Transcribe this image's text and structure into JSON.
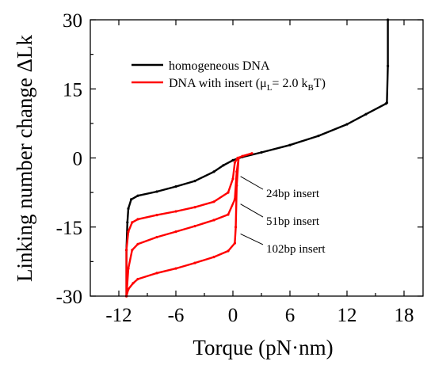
{
  "chart_data": {
    "type": "line",
    "xlabel": "Torque (pN·nm)",
    "ylabel": "Linking number change  ΔLk",
    "xlim": [
      -15,
      20
    ],
    "ylim": [
      -30,
      30
    ],
    "xticks": [
      "-12",
      "-6",
      "0",
      "6",
      "12",
      "18"
    ],
    "yticks": [
      "30",
      "15",
      "0",
      "-15",
      "-30"
    ],
    "legend_position": "top",
    "series": [
      {
        "name": "homogeneous DNA",
        "color": "#000000",
        "points": [
          [
            -11.2,
            -30
          ],
          [
            -11.2,
            -20
          ],
          [
            -11.1,
            -14
          ],
          [
            -11.0,
            -11
          ],
          [
            -10.7,
            -9.0
          ],
          [
            -10.0,
            -8.2
          ],
          [
            -8,
            -7.3
          ],
          [
            -6,
            -6.2
          ],
          [
            -4,
            -5.0
          ],
          [
            -2,
            -3.0
          ],
          [
            -1,
            -1.6
          ],
          [
            0,
            -0.5
          ],
          [
            1,
            0.2
          ],
          [
            3,
            1.2
          ],
          [
            6,
            2.8
          ],
          [
            9,
            4.8
          ],
          [
            12,
            7.3
          ],
          [
            14,
            9.5
          ],
          [
            16.1,
            11.8
          ],
          [
            16.2,
            12
          ],
          [
            16.3,
            20
          ],
          [
            16.3,
            30
          ]
        ]
      },
      {
        "name": "DNA with insert (μL= 2.0 kBT)",
        "color": "#ff0000",
        "points": [
          [
            -11.2,
            -30
          ],
          [
            -11.2,
            -20
          ],
          [
            -11.0,
            -16.0
          ],
          [
            -10.6,
            -14.0
          ],
          [
            -10,
            -13.3
          ],
          [
            -8,
            -12.4
          ],
          [
            -6,
            -11.6
          ],
          [
            -4,
            -10.7
          ],
          [
            -2,
            -9.5
          ],
          [
            -0.5,
            -7.5
          ],
          [
            0,
            -4.5
          ],
          [
            0.2,
            -1.0
          ],
          [
            0.5,
            0
          ],
          [
            1,
            0.4
          ],
          [
            2,
            1.0
          ]
        ]
      },
      {
        "name": "",
        "color": "#ff0000",
        "points": [
          [
            -11.2,
            -30
          ],
          [
            -11.0,
            -24.0
          ],
          [
            -10.6,
            -20.0
          ],
          [
            -10,
            -18.7
          ],
          [
            -8,
            -17.2
          ],
          [
            -6,
            -16.0
          ],
          [
            -4,
            -14.8
          ],
          [
            -2,
            -13.5
          ],
          [
            -0.5,
            -12.3
          ],
          [
            0.2,
            -9.0
          ],
          [
            0.4,
            -3.0
          ],
          [
            0.6,
            0
          ]
        ]
      },
      {
        "name": "",
        "color": "#ff0000",
        "points": [
          [
            -11.2,
            -30
          ],
          [
            -11.0,
            -28.5
          ],
          [
            -10.5,
            -27.2
          ],
          [
            -10,
            -26.3
          ],
          [
            -8,
            -25.0
          ],
          [
            -6,
            -24.0
          ],
          [
            -4,
            -22.8
          ],
          [
            -2,
            -21.5
          ],
          [
            -0.5,
            -20.2
          ],
          [
            0.2,
            -18.5
          ],
          [
            0.3,
            -15
          ],
          [
            0.4,
            -6
          ],
          [
            0.6,
            0
          ]
        ]
      }
    ],
    "annotations": [
      {
        "text": "24bp insert",
        "label_x": 3.5,
        "label_y": -7.5,
        "arrow_to": [
          0.8,
          -4
        ]
      },
      {
        "text": "51bp insert",
        "label_x": 3.5,
        "label_y": -13.5,
        "arrow_to": [
          0.8,
          -10
        ]
      },
      {
        "text": "102bp insert",
        "label_x": 3.5,
        "label_y": -19.5,
        "arrow_to": [
          0.8,
          -16.5
        ]
      }
    ]
  },
  "legend": {
    "item1": "homogeneous DNA",
    "item2_prefix": "DNA with insert (μ",
    "item2_sub1": "L",
    "item2_mid": "= 2.0 k",
    "item2_sub2": "B",
    "item2_suffix": "T)"
  }
}
